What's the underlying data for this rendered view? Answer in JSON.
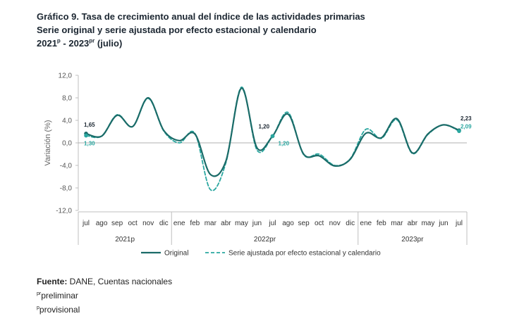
{
  "title": {
    "line1": "Gráfico 9. Tasa de crecimiento anual del índice de las actividades primarias",
    "line2": "Serie original y serie ajustada por efecto estacional y calendario",
    "line3_years_start": "2021",
    "line3_sup_p": "p",
    "line3_mid": " - 2023",
    "line3_sup_pr": "pr",
    "line3_end": " (julio)"
  },
  "footer": {
    "source_label": "Fuente:",
    "source_text": " DANE, Cuentas nacionales",
    "note1_sup": "pr",
    "note1_text": "preliminar",
    "note2_sup": "p",
    "note2_text": "provisional"
  },
  "colors": {
    "original": "#1a6b68",
    "adjusted": "#2aa7a0",
    "axis": "#bfbfbf",
    "zero": "#999999"
  },
  "chart_data": {
    "type": "line",
    "title": "Tasa de crecimiento anual del índice de las actividades primarias",
    "ylabel": "Variación (%)",
    "xlabel": "",
    "ylim": [
      -12,
      12
    ],
    "yticks": [
      "12,0",
      "8,0",
      "4,0",
      "0,0",
      "-4,0",
      "-8,0",
      "-12,0"
    ],
    "ytick_values": [
      12,
      8,
      4,
      0,
      -4,
      -8,
      -12
    ],
    "categories": [
      "jul",
      "ago",
      "sep",
      "oct",
      "nov",
      "dic",
      "ene",
      "feb",
      "mar",
      "abr",
      "may",
      "jun",
      "jul",
      "ago",
      "sep",
      "oct",
      "nov",
      "dic",
      "ene",
      "feb",
      "mar",
      "abr",
      "may",
      "jun",
      "jul"
    ],
    "year_groups": [
      {
        "label": "2021p",
        "start": 0,
        "end": 5
      },
      {
        "label": "2022pr",
        "start": 6,
        "end": 17
      },
      {
        "label": "2023pr",
        "start": 18,
        "end": 24
      }
    ],
    "series": [
      {
        "name": "Original",
        "style": "solid",
        "values": [
          1.65,
          1.2,
          4.9,
          2.9,
          8.0,
          2.2,
          0.4,
          1.6,
          -5.6,
          -3.2,
          9.7,
          -0.9,
          1.2,
          5.1,
          -2.0,
          -2.3,
          -4.1,
          -2.9,
          1.7,
          0.9,
          4.3,
          -1.8,
          1.6,
          3.2,
          2.23
        ]
      },
      {
        "name": "Serie ajustada por efecto estacional y calendario",
        "style": "dashed",
        "values": [
          1.3,
          1.2,
          5.0,
          2.9,
          7.9,
          2.1,
          0.0,
          1.7,
          -8.3,
          -3.5,
          9.9,
          -1.3,
          1.2,
          5.4,
          -2.1,
          -2.0,
          -4.0,
          -2.8,
          2.4,
          0.8,
          4.1,
          -1.9,
          1.5,
          3.2,
          2.09
        ]
      }
    ],
    "data_labels": [
      {
        "series": 0,
        "index": 0,
        "text": "1,65"
      },
      {
        "series": 1,
        "index": 0,
        "text": "1,30"
      },
      {
        "series": 0,
        "index": 12,
        "text": "1,20"
      },
      {
        "series": 1,
        "index": 12,
        "text": "1,20"
      },
      {
        "series": 0,
        "index": 24,
        "text": "2,23"
      },
      {
        "series": 1,
        "index": 24,
        "text": "2,09"
      }
    ],
    "legend_position": "bottom-center"
  }
}
